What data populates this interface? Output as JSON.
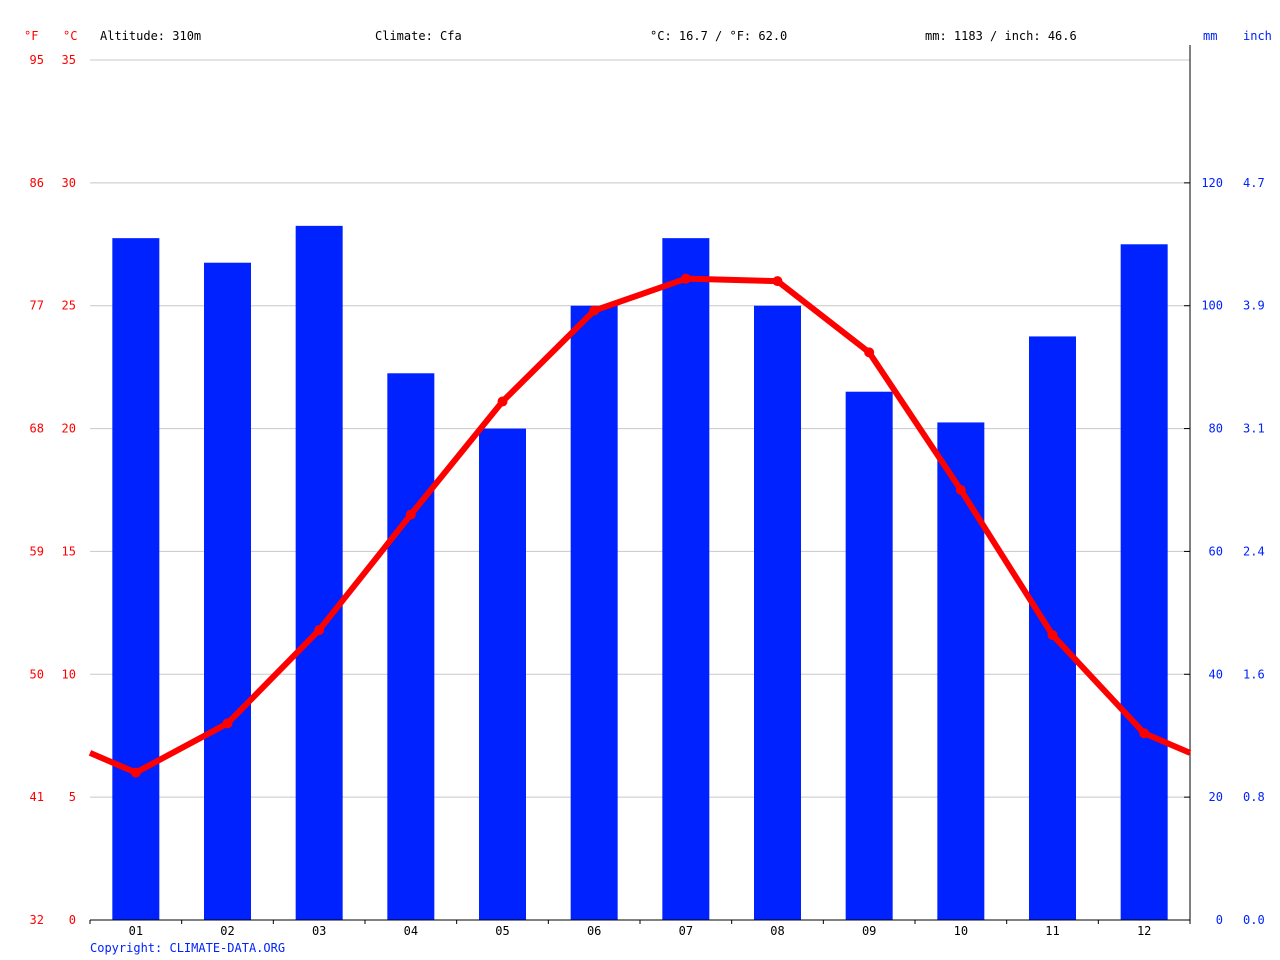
{
  "header": {
    "unit_f": "°F",
    "unit_c": "°C",
    "altitude": "Altitude: 310m",
    "climate": "Climate: Cfa",
    "temp_summary": "°C: 16.7 / °F: 62.0",
    "precip_summary": "mm: 1183 / inch: 46.6",
    "unit_mm": "mm",
    "unit_inch": "inch"
  },
  "copyright": "Copyright: CLIMATE-DATA.ORG",
  "colors": {
    "temperature": "#ff0000",
    "precipitation": "#0022ff",
    "grid": "#c8c8c8",
    "axis": "#000000"
  },
  "chart_data": {
    "type": "bar",
    "categories": [
      "01",
      "02",
      "03",
      "04",
      "05",
      "06",
      "07",
      "08",
      "09",
      "10",
      "11",
      "12"
    ],
    "series": [
      {
        "type": "bar",
        "axis": "right",
        "values": [
          111,
          107,
          113,
          89,
          80,
          100,
          111,
          100,
          86,
          81,
          95,
          110
        ]
      },
      {
        "type": "line",
        "axis": "left",
        "values": [
          6.0,
          8.0,
          11.8,
          16.5,
          21.1,
          24.8,
          26.1,
          26.0,
          23.1,
          17.5,
          11.6,
          7.6
        ]
      }
    ],
    "y_left": {
      "ylim": [
        0,
        35
      ],
      "ticks_c": [
        "0",
        "5",
        "10",
        "15",
        "20",
        "25",
        "30",
        "35"
      ],
      "ticks_f": [
        "32",
        "41",
        "50",
        "59",
        "68",
        "77",
        "86",
        "95"
      ]
    },
    "y_right": {
      "ylim": [
        0,
        140
      ],
      "ticks_mm": [
        "0",
        "20",
        "40",
        "60",
        "80",
        "100",
        "120"
      ],
      "ticks_inch": [
        "0.0",
        "0.8",
        "1.6",
        "2.4",
        "3.1",
        "3.9",
        "4.7"
      ]
    },
    "grid": true
  }
}
